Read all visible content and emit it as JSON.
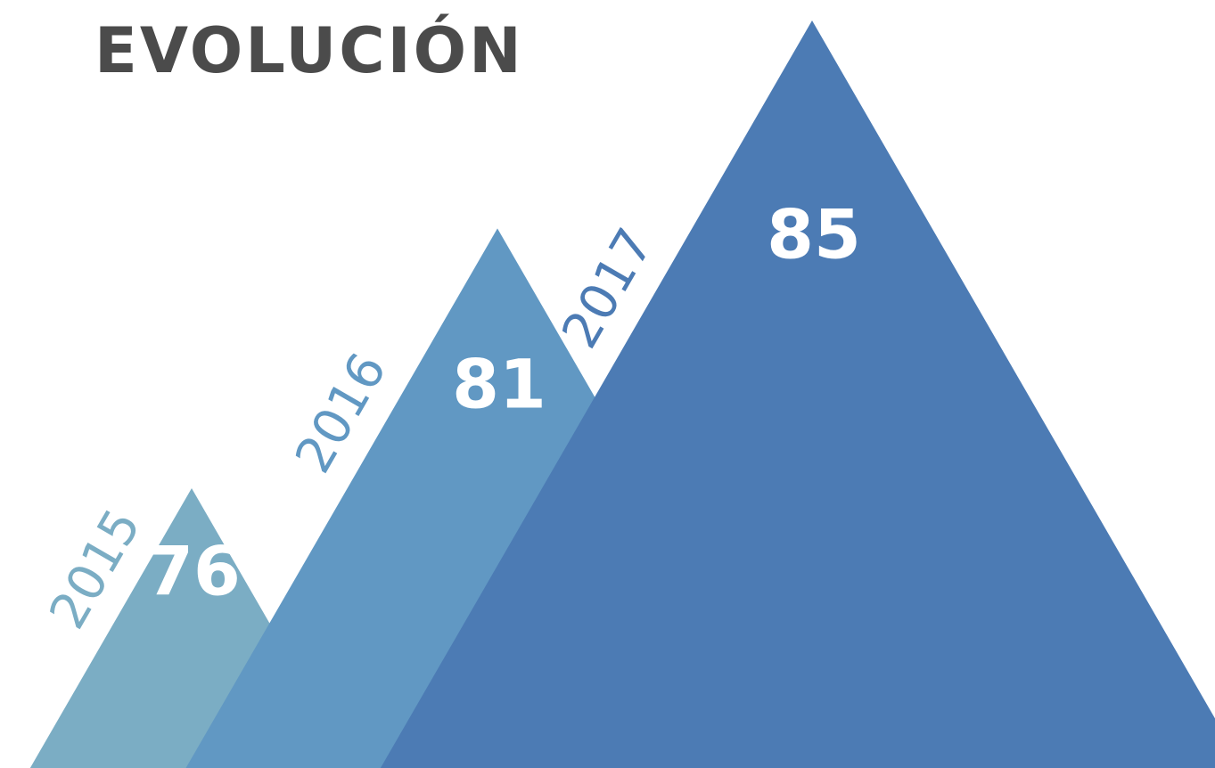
{
  "page": {
    "title": "EVOLUCIÓN"
  },
  "chart_data": {
    "type": "bar",
    "shape": "triangle",
    "title": "EVOLUCIÓN",
    "categories": [
      "2015",
      "2016",
      "2017"
    ],
    "values": [
      76,
      81,
      85
    ],
    "colors": [
      "#7badc4",
      "#6198c3",
      "#4c7bb4"
    ],
    "title_color": "#4b4b4b",
    "grid": false,
    "legend": "none"
  }
}
